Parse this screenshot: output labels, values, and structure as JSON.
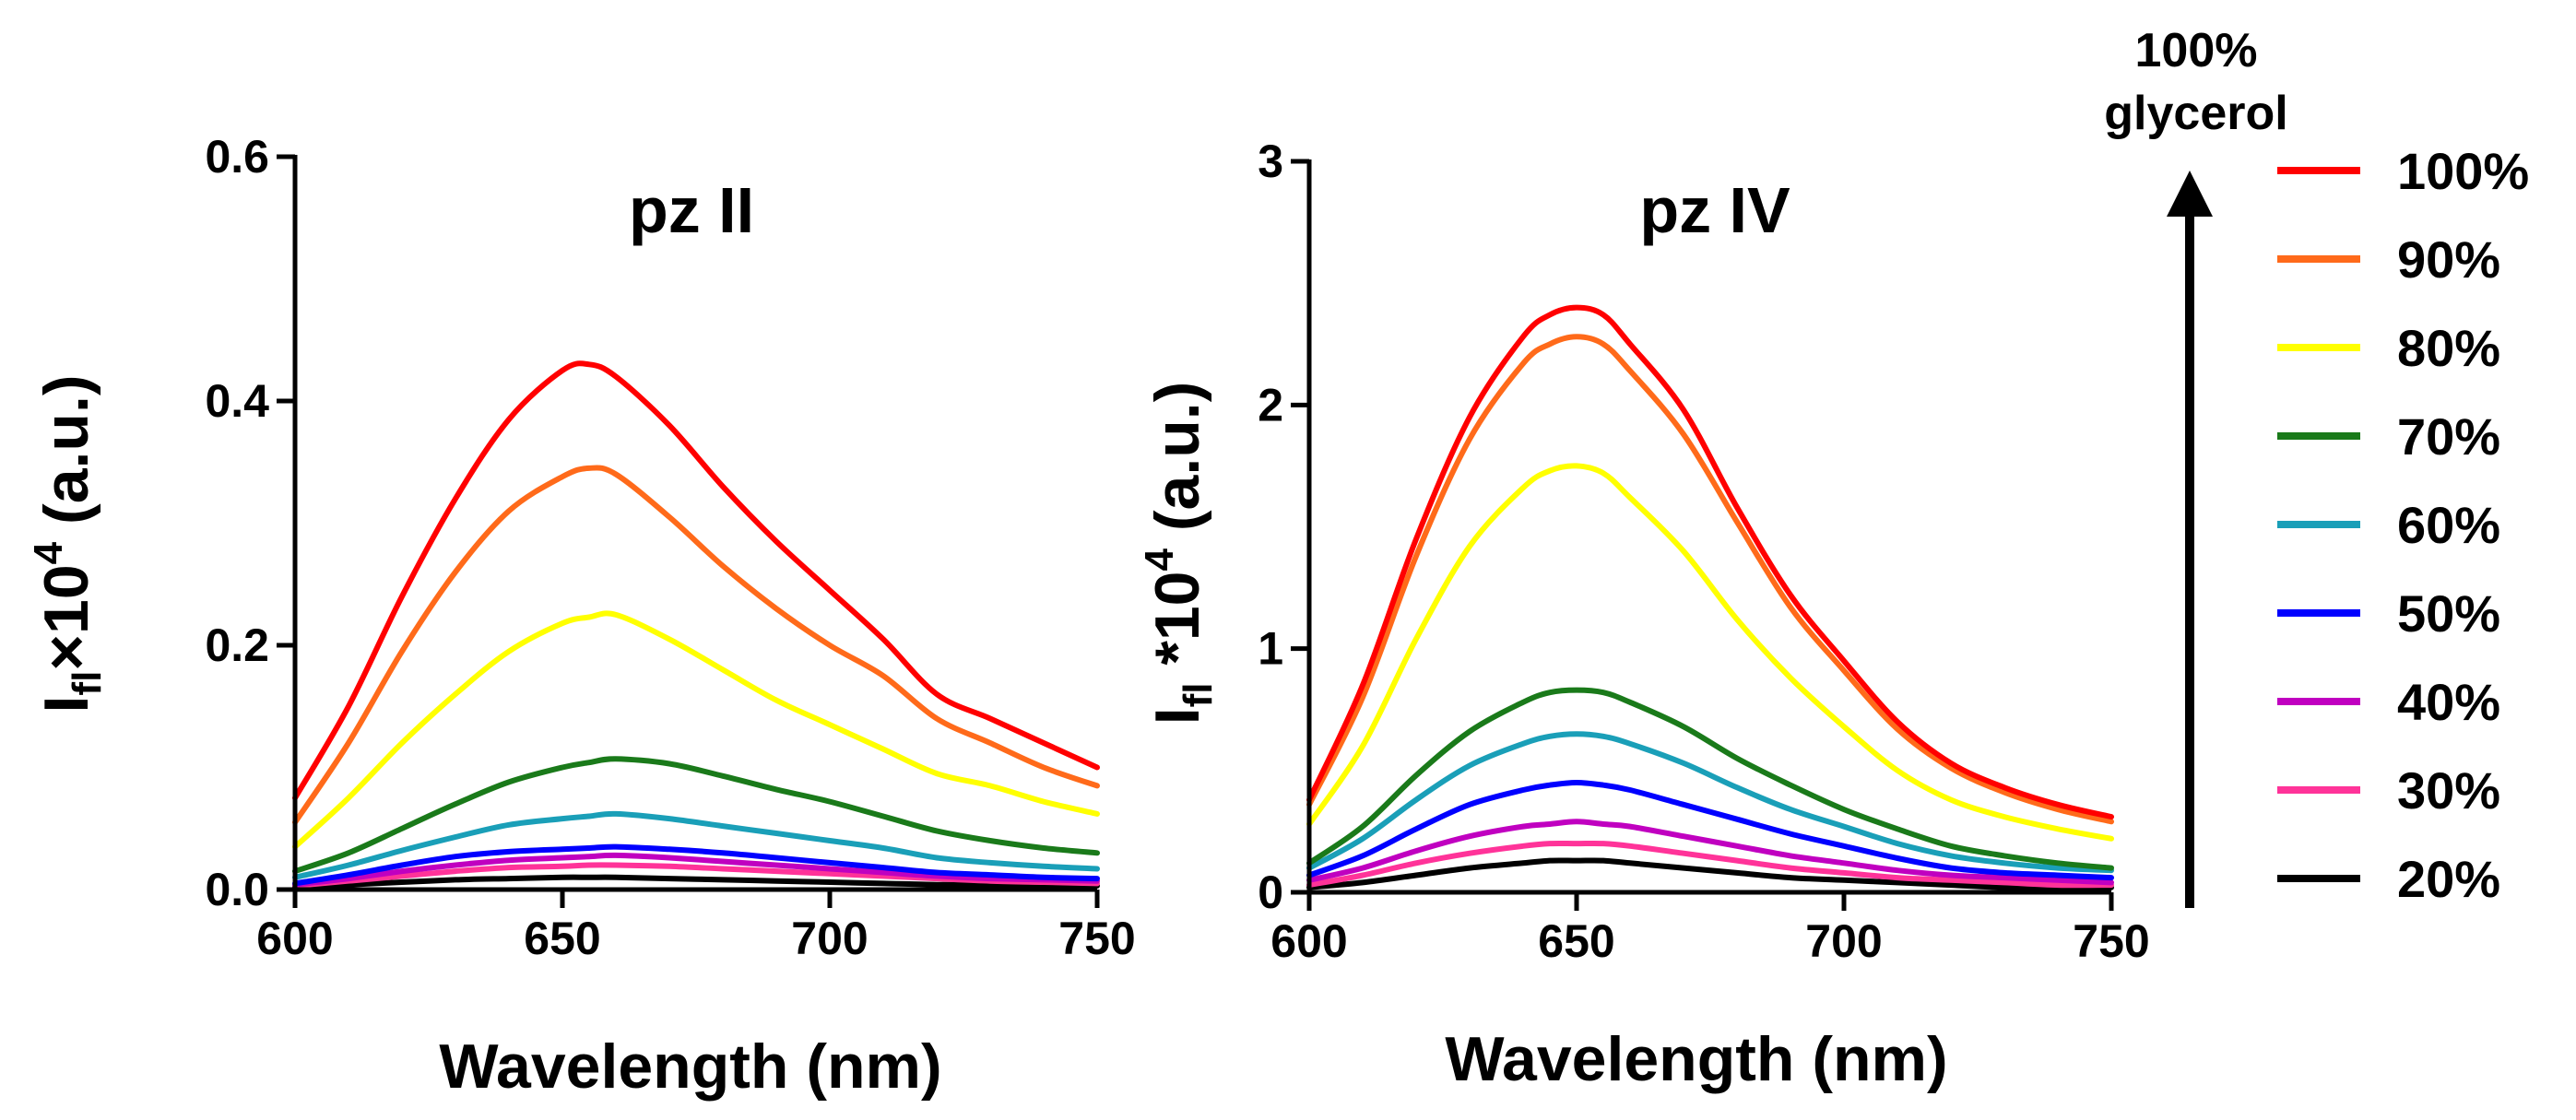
{
  "chart_data": [
    {
      "type": "line",
      "title": "pz II",
      "xlabel": "Wavelength (nm)",
      "ylabel": {
        "base": "I",
        "sub": "fl",
        "op": "×10",
        "sup": "4",
        "tail": " (a.u.)"
      },
      "xlim": [
        600,
        750
      ],
      "ylim": [
        0,
        0.6
      ],
      "xticks": [
        "600",
        "650",
        "700",
        "750"
      ],
      "yticks": [
        "0.0",
        "0.2",
        "0.4",
        "0.6"
      ],
      "x": [
        600,
        610,
        620,
        630,
        640,
        650,
        655,
        660,
        670,
        680,
        690,
        700,
        710,
        720,
        730,
        740,
        750
      ],
      "series": [
        {
          "name": "100%",
          "color": "#ff0000",
          "values": [
            0.075,
            0.15,
            0.24,
            0.32,
            0.385,
            0.425,
            0.43,
            0.42,
            0.38,
            0.33,
            0.285,
            0.245,
            0.205,
            0.16,
            0.14,
            0.12,
            0.1
          ]
        },
        {
          "name": "90%",
          "color": "#ff6a1a",
          "values": [
            0.055,
            0.12,
            0.195,
            0.26,
            0.31,
            0.338,
            0.345,
            0.34,
            0.305,
            0.265,
            0.23,
            0.2,
            0.175,
            0.14,
            0.12,
            0.1,
            0.085
          ]
        },
        {
          "name": "80%",
          "color": "#ffff00",
          "values": [
            0.035,
            0.075,
            0.12,
            0.16,
            0.195,
            0.218,
            0.223,
            0.225,
            0.205,
            0.18,
            0.155,
            0.135,
            0.115,
            0.095,
            0.085,
            0.072,
            0.062
          ]
        },
        {
          "name": "70%",
          "color": "#1a7a1a",
          "values": [
            0.015,
            0.03,
            0.05,
            0.07,
            0.088,
            0.1,
            0.104,
            0.107,
            0.103,
            0.093,
            0.082,
            0.072,
            0.06,
            0.048,
            0.04,
            0.034,
            0.03
          ]
        },
        {
          "name": "60%",
          "color": "#1a9fb8",
          "values": [
            0.01,
            0.02,
            0.032,
            0.043,
            0.053,
            0.058,
            0.06,
            0.062,
            0.058,
            0.052,
            0.046,
            0.04,
            0.034,
            0.026,
            0.022,
            0.019,
            0.017
          ]
        },
        {
          "name": "50%",
          "color": "#0000ff",
          "values": [
            0.005,
            0.012,
            0.02,
            0.027,
            0.031,
            0.033,
            0.034,
            0.035,
            0.033,
            0.03,
            0.026,
            0.022,
            0.018,
            0.014,
            0.012,
            0.01,
            0.009
          ]
        },
        {
          "name": "40%",
          "color": "#c000c0",
          "values": [
            0.004,
            0.009,
            0.015,
            0.02,
            0.024,
            0.026,
            0.027,
            0.028,
            0.026,
            0.023,
            0.02,
            0.017,
            0.014,
            0.011,
            0.009,
            0.008,
            0.007
          ]
        },
        {
          "name": "30%",
          "color": "#ff3399",
          "values": [
            0.003,
            0.007,
            0.011,
            0.015,
            0.018,
            0.019,
            0.02,
            0.02,
            0.019,
            0.017,
            0.015,
            0.013,
            0.011,
            0.009,
            0.007,
            0.006,
            0.005
          ]
        },
        {
          "name": "20%",
          "color": "#000000",
          "values": [
            0.002,
            0.004,
            0.006,
            0.008,
            0.009,
            0.01,
            0.01,
            0.01,
            0.009,
            0.008,
            0.007,
            0.006,
            0.005,
            0.004,
            0.004,
            0.003,
            0.003
          ]
        }
      ]
    },
    {
      "type": "line",
      "title": "pz IV",
      "xlabel": "Wavelength (nm)",
      "ylabel": {
        "base": "I",
        "sub": "fl",
        "op": " *10",
        "sup": "4",
        "tail": " (a.u.)"
      },
      "xlim": [
        600,
        750
      ],
      "ylim": [
        0,
        3
      ],
      "xticks": [
        "600",
        "650",
        "700",
        "750"
      ],
      "yticks": [
        "0",
        "1",
        "2",
        "3"
      ],
      "x": [
        600,
        610,
        620,
        630,
        640,
        645,
        650,
        655,
        660,
        670,
        680,
        690,
        700,
        710,
        720,
        730,
        740,
        750
      ],
      "series": [
        {
          "name": "100%",
          "color": "#ff0000",
          "values": [
            0.38,
            0.85,
            1.45,
            1.95,
            2.28,
            2.37,
            2.4,
            2.37,
            2.25,
            1.98,
            1.58,
            1.22,
            0.95,
            0.7,
            0.53,
            0.43,
            0.36,
            0.31
          ]
        },
        {
          "name": "90%",
          "color": "#ff6a1a",
          "values": [
            0.36,
            0.8,
            1.38,
            1.86,
            2.17,
            2.25,
            2.28,
            2.25,
            2.14,
            1.88,
            1.52,
            1.17,
            0.91,
            0.67,
            0.51,
            0.41,
            0.34,
            0.29
          ]
        },
        {
          "name": "80%",
          "color": "#ffff00",
          "values": [
            0.28,
            0.6,
            1.04,
            1.42,
            1.66,
            1.73,
            1.75,
            1.72,
            1.62,
            1.4,
            1.12,
            0.88,
            0.68,
            0.5,
            0.38,
            0.31,
            0.26,
            0.22
          ]
        },
        {
          "name": "70%",
          "color": "#1a7a1a",
          "values": [
            0.12,
            0.27,
            0.48,
            0.66,
            0.78,
            0.82,
            0.83,
            0.82,
            0.78,
            0.68,
            0.55,
            0.44,
            0.34,
            0.26,
            0.19,
            0.15,
            0.12,
            0.1
          ]
        },
        {
          "name": "60%",
          "color": "#1a9fb8",
          "values": [
            0.1,
            0.22,
            0.38,
            0.52,
            0.61,
            0.64,
            0.65,
            0.64,
            0.61,
            0.53,
            0.43,
            0.34,
            0.27,
            0.2,
            0.15,
            0.12,
            0.1,
            0.09
          ]
        },
        {
          "name": "50%",
          "color": "#0000ff",
          "values": [
            0.07,
            0.15,
            0.26,
            0.36,
            0.42,
            0.44,
            0.45,
            0.44,
            0.42,
            0.36,
            0.3,
            0.24,
            0.19,
            0.14,
            0.1,
            0.08,
            0.07,
            0.06
          ]
        },
        {
          "name": "40%",
          "color": "#c000c0",
          "values": [
            0.05,
            0.1,
            0.17,
            0.23,
            0.27,
            0.28,
            0.29,
            0.28,
            0.27,
            0.23,
            0.19,
            0.15,
            0.12,
            0.09,
            0.07,
            0.06,
            0.05,
            0.04
          ]
        },
        {
          "name": "30%",
          "color": "#ff3399",
          "values": [
            0.03,
            0.07,
            0.12,
            0.16,
            0.19,
            0.2,
            0.2,
            0.2,
            0.19,
            0.16,
            0.13,
            0.1,
            0.08,
            0.06,
            0.05,
            0.04,
            0.03,
            0.03
          ]
        },
        {
          "name": "20%",
          "color": "#000000",
          "values": [
            0.02,
            0.04,
            0.07,
            0.1,
            0.12,
            0.13,
            0.13,
            0.13,
            0.12,
            0.1,
            0.08,
            0.06,
            0.05,
            0.04,
            0.03,
            0.02,
            0.02,
            0.02
          ]
        }
      ]
    }
  ],
  "legend": {
    "arrow_label_line1": "100%",
    "arrow_label_line2": "glycerol",
    "items": [
      {
        "label": "100%",
        "color": "#ff0000"
      },
      {
        "label": "90%",
        "color": "#ff6a1a"
      },
      {
        "label": "80%",
        "color": "#ffff00"
      },
      {
        "label": "70%",
        "color": "#1a7a1a"
      },
      {
        "label": "60%",
        "color": "#1a9fb8"
      },
      {
        "label": "50%",
        "color": "#0000ff"
      },
      {
        "label": "40%",
        "color": "#c000c0"
      },
      {
        "label": "30%",
        "color": "#ff3399"
      },
      {
        "label": "20%",
        "color": "#000000"
      }
    ]
  }
}
